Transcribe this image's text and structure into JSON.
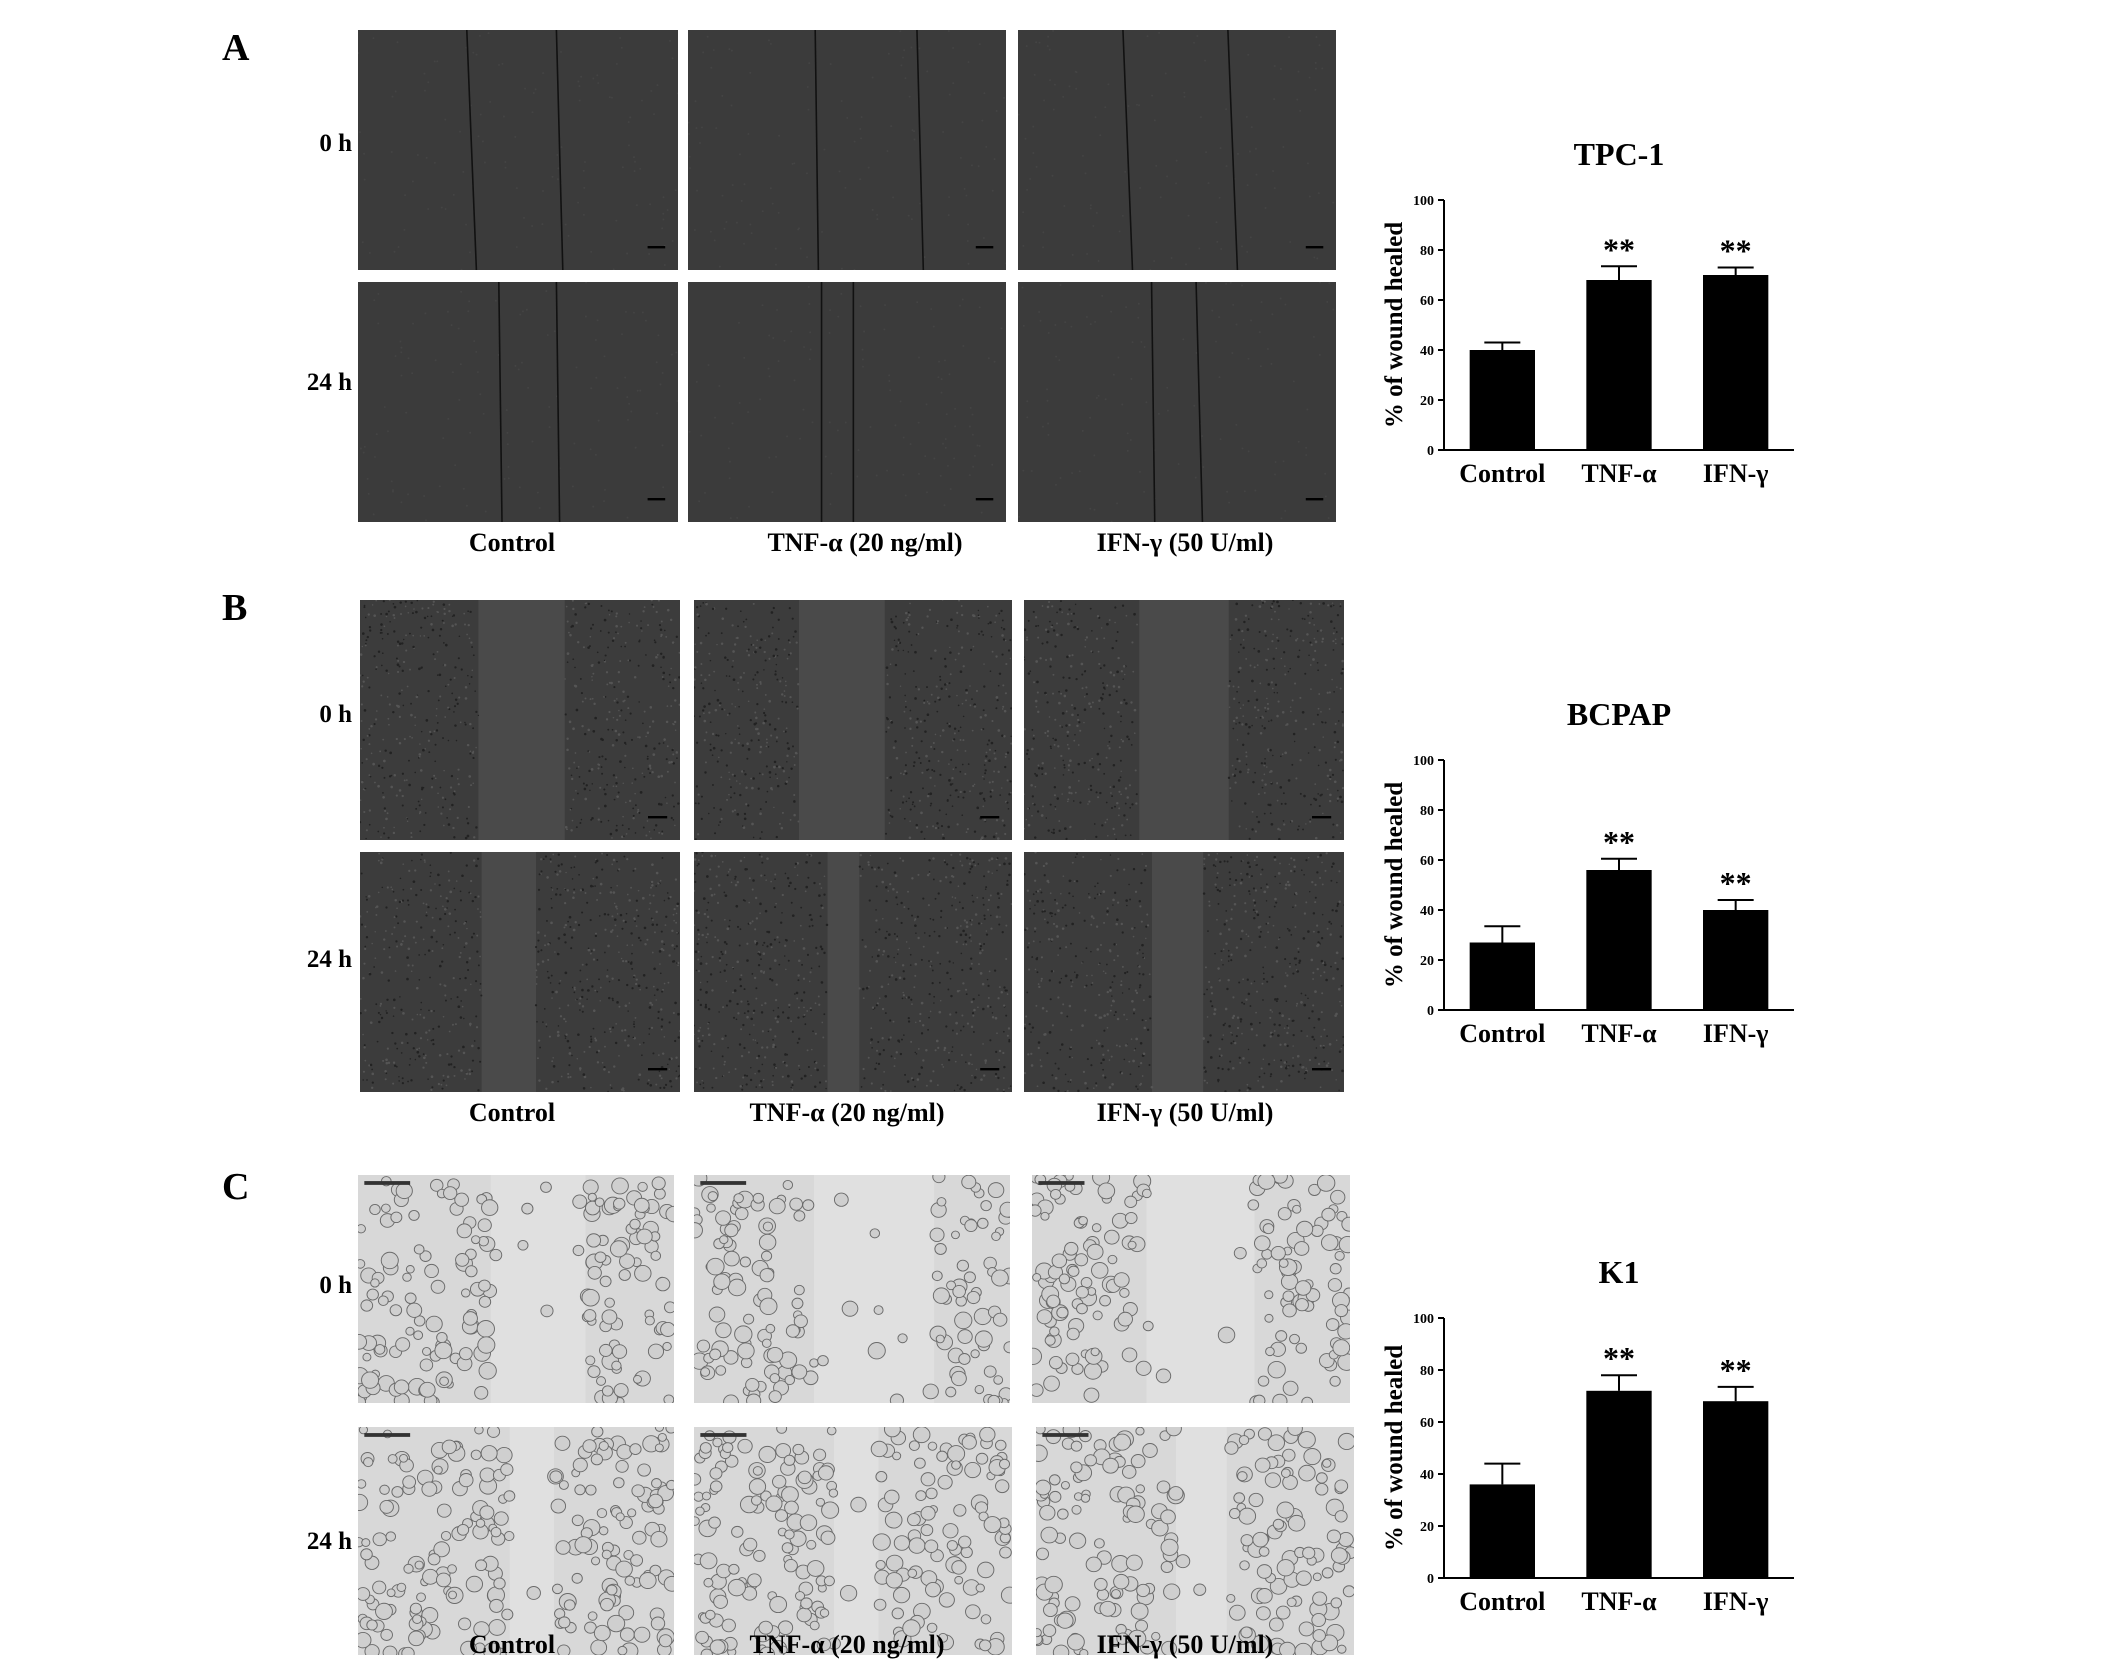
{
  "figure": {
    "panels": [
      {
        "letter": "A",
        "row_labels": [
          "0 h",
          "24 h"
        ],
        "condition_labels": [
          "Control",
          "TNF-α (20 ng/ml)",
          "IFN-γ (50 U/ml)"
        ],
        "image_style": "scratch-line",
        "tone": "#3b3b3b"
      },
      {
        "letter": "B",
        "row_labels": [
          "0 h",
          "24 h"
        ],
        "condition_labels": [
          "Control",
          "TNF-α (20 ng/ml)",
          "IFN-γ (50 U/ml)"
        ],
        "image_style": "dark-cell-band",
        "tone": "#3a3a3a"
      },
      {
        "letter": "C",
        "row_labels": [
          "0 h",
          "24 h"
        ],
        "condition_labels": [
          "Control",
          "TNF-α (20 ng/ml)",
          "IFN-γ (50 U/ml)"
        ],
        "image_style": "bright-field-cells",
        "tone": "#d6d6d6"
      }
    ]
  },
  "chart_data": [
    {
      "type": "bar",
      "title": "TPC-1",
      "categories": [
        "Control",
        "TNF-α",
        "IFN-γ"
      ],
      "values": [
        40,
        68,
        70
      ],
      "errors": [
        3,
        5.5,
        3
      ],
      "significance": [
        "",
        "**",
        "**"
      ],
      "ylabel": "% of wound healed",
      "ylim": [
        0,
        100
      ],
      "yticks": [
        0,
        20,
        40,
        60,
        80,
        100
      ],
      "bar_color": "#000000"
    },
    {
      "type": "bar",
      "title": "BCPAP",
      "categories": [
        "Control",
        "TNF-α",
        "IFN-γ"
      ],
      "values": [
        27,
        56,
        40
      ],
      "errors": [
        6.5,
        4.5,
        4
      ],
      "significance": [
        "",
        "**",
        "**"
      ],
      "ylabel": "% of wound healed",
      "ylim": [
        0,
        100
      ],
      "yticks": [
        0,
        20,
        40,
        60,
        80,
        100
      ],
      "bar_color": "#000000"
    },
    {
      "type": "bar",
      "title": "K1",
      "categories": [
        "Control",
        "TNF-α",
        "IFN-γ"
      ],
      "values": [
        36,
        72,
        68
      ],
      "errors": [
        8,
        6,
        5.5
      ],
      "significance": [
        "",
        "**",
        "**"
      ],
      "ylabel": "% of wound healed",
      "ylim": [
        0,
        100
      ],
      "yticks": [
        0,
        20,
        40,
        60,
        80,
        100
      ],
      "bar_color": "#000000"
    }
  ]
}
